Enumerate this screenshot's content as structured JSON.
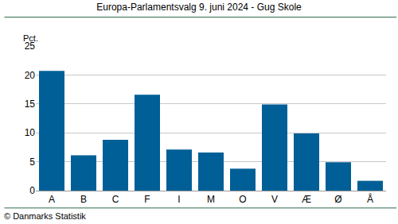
{
  "chart_data": {
    "type": "bar",
    "title": "Europa-Parlamentsvalg 9. juni 2024 - Gug Skole",
    "ylabel": "Pct.",
    "annotations": [
      "© Danmarks Statistik"
    ],
    "categories": [
      "A",
      "B",
      "C",
      "F",
      "I",
      "M",
      "O",
      "V",
      "Æ",
      "Ø",
      "Å"
    ],
    "values": [
      20.7,
      6.1,
      8.8,
      16.6,
      7.1,
      6.6,
      3.8,
      14.9,
      9.9,
      4.9,
      1.7
    ],
    "color": "#005f96",
    "ylim": [
      0,
      25
    ],
    "yticks": [
      0,
      5,
      10,
      15,
      20,
      25
    ],
    "grid": true
  }
}
